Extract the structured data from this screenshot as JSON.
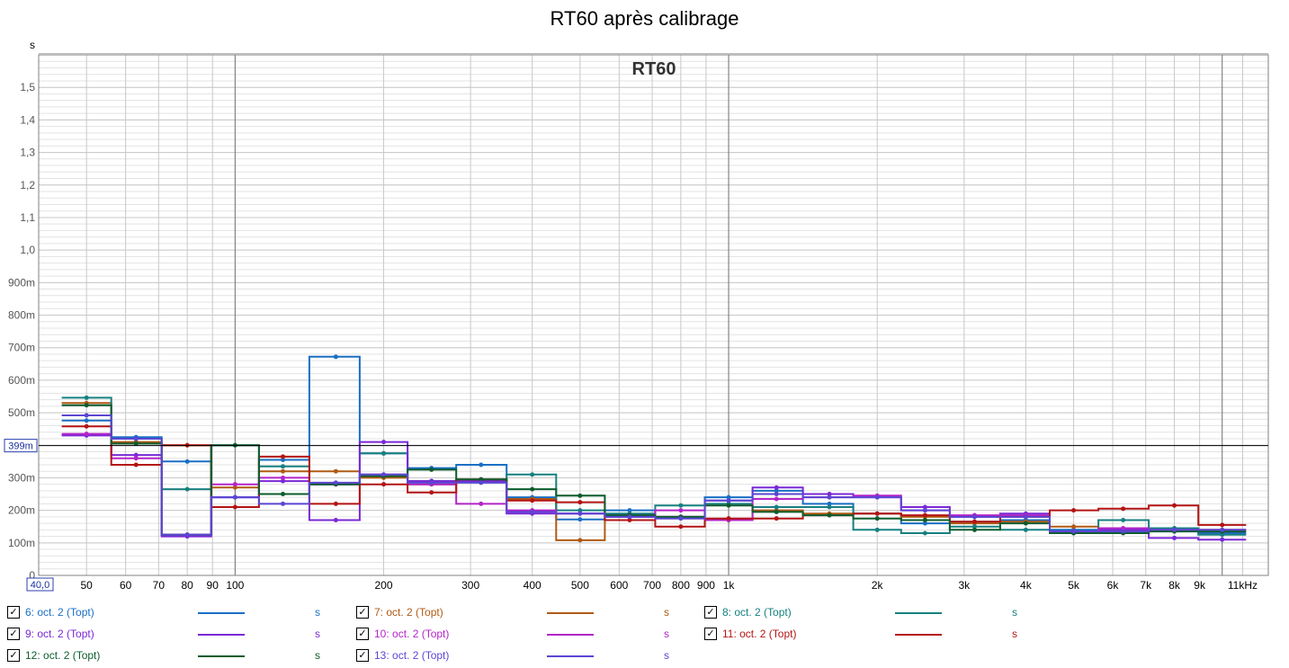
{
  "title": "RT60 après calibrage",
  "overlay_title": "RT60",
  "y_unit_label": "s",
  "cursor_x_label": "40,0",
  "cursor_y_label": "399m",
  "x_tick_labels": [
    {
      "f": 50,
      "t": "50"
    },
    {
      "f": 60,
      "t": "60"
    },
    {
      "f": 70,
      "t": "70"
    },
    {
      "f": 80,
      "t": "80"
    },
    {
      "f": 90,
      "t": "90"
    },
    {
      "f": 100,
      "t": "100"
    },
    {
      "f": 200,
      "t": "200"
    },
    {
      "f": 300,
      "t": "300"
    },
    {
      "f": 400,
      "t": "400"
    },
    {
      "f": 500,
      "t": "500"
    },
    {
      "f": 600,
      "t": "600"
    },
    {
      "f": 700,
      "t": "700"
    },
    {
      "f": 800,
      "t": "800"
    },
    {
      "f": 900,
      "t": "900"
    },
    {
      "f": 1000,
      "t": "1k"
    },
    {
      "f": 2000,
      "t": "2k"
    },
    {
      "f": 3000,
      "t": "3k"
    },
    {
      "f": 4000,
      "t": "4k"
    },
    {
      "f": 5000,
      "t": "5k"
    },
    {
      "f": 6000,
      "t": "6k"
    },
    {
      "f": 7000,
      "t": "7k"
    },
    {
      "f": 8000,
      "t": "8k"
    },
    {
      "f": 9000,
      "t": "9k"
    },
    {
      "f": 11000,
      "t": "11kHz"
    }
  ],
  "y_tick_labels": [
    {
      "v": 0,
      "t": "0"
    },
    {
      "v": 0.1,
      "t": "100m"
    },
    {
      "v": 0.2,
      "t": "200m"
    },
    {
      "v": 0.3,
      "t": "300m"
    },
    {
      "v": 0.4,
      "t": "400m"
    },
    {
      "v": 0.5,
      "t": "500m"
    },
    {
      "v": 0.6,
      "t": "600m"
    },
    {
      "v": 0.7,
      "t": "700m"
    },
    {
      "v": 0.8,
      "t": "800m"
    },
    {
      "v": 0.9,
      "t": "900m"
    },
    {
      "v": 1.0,
      "t": "1,0"
    },
    {
      "v": 1.1,
      "t": "1,1"
    },
    {
      "v": 1.2,
      "t": "1,2"
    },
    {
      "v": 1.3,
      "t": "1,3"
    },
    {
      "v": 1.4,
      "t": "1,4"
    },
    {
      "v": 1.5,
      "t": "1,5"
    }
  ],
  "chart_data": {
    "type": "line",
    "title": "RT60 après calibrage",
    "xlabel": "",
    "ylabel": "s",
    "x_scale": "log",
    "xlim": [
      40,
      12400
    ],
    "ylim": [
      0,
      1.6
    ],
    "grid": true,
    "legend_position": "bottom",
    "x": [
      50,
      63,
      80,
      100,
      125,
      160,
      200,
      250,
      315,
      400,
      500,
      630,
      800,
      1000,
      1250,
      1600,
      2000,
      2500,
      3150,
      4000,
      5000,
      6300,
      8000,
      10000
    ],
    "series": [
      {
        "name": "6: oct. 2 (Topt)",
        "color": "#1a6fc4",
        "values": [
          0.476,
          0.425,
          0.35,
          0.24,
          0.355,
          0.672,
          0.375,
          0.33,
          0.34,
          0.24,
          0.172,
          0.2,
          0.18,
          0.24,
          0.26,
          0.22,
          0.19,
          0.16,
          0.165,
          0.17,
          0.14,
          0.14,
          0.14,
          0.13
        ]
      },
      {
        "name": "7: oct. 2 (Topt)",
        "color": "#b05a14",
        "values": [
          0.53,
          0.41,
          0.4,
          0.27,
          0.32,
          0.32,
          0.3,
          0.28,
          0.29,
          0.235,
          0.108,
          0.18,
          0.18,
          0.17,
          0.2,
          0.19,
          0.19,
          0.18,
          0.16,
          0.165,
          0.15,
          0.135,
          0.14,
          0.14
        ]
      },
      {
        "name": "8: oct. 2 (Topt)",
        "color": "#178080",
        "values": [
          0.546,
          0.42,
          0.265,
          0.4,
          0.335,
          0.28,
          0.375,
          0.29,
          0.29,
          0.31,
          0.2,
          0.19,
          0.215,
          0.22,
          0.21,
          0.21,
          0.14,
          0.13,
          0.15,
          0.14,
          0.13,
          0.17,
          0.145,
          0.125
        ]
      },
      {
        "name": "9: oct. 2 (Topt)",
        "color": "#7a28d6",
        "values": [
          0.43,
          0.37,
          0.12,
          0.24,
          0.29,
          0.17,
          0.41,
          0.29,
          0.29,
          0.19,
          0.19,
          0.18,
          0.18,
          0.23,
          0.27,
          0.25,
          0.24,
          0.21,
          0.18,
          0.19,
          0.135,
          0.14,
          0.115,
          0.11
        ]
      },
      {
        "name": "10: oct. 2 (Topt)",
        "color": "#b424c8",
        "values": [
          0.435,
          0.36,
          0.125,
          0.28,
          0.3,
          0.28,
          0.31,
          0.28,
          0.22,
          0.2,
          0.19,
          0.185,
          0.2,
          0.17,
          0.235,
          0.24,
          0.245,
          0.2,
          0.185,
          0.185,
          0.135,
          0.145,
          0.14,
          0.135
        ]
      },
      {
        "name": "11: oct. 2 (Topt)",
        "color": "#b41414",
        "values": [
          0.458,
          0.34,
          0.4,
          0.21,
          0.365,
          0.22,
          0.28,
          0.255,
          0.295,
          0.23,
          0.225,
          0.17,
          0.15,
          0.175,
          0.175,
          0.185,
          0.19,
          0.185,
          0.165,
          0.18,
          0.2,
          0.205,
          0.215,
          0.155
        ]
      },
      {
        "name": "12: oct. 2 (Topt)",
        "color": "#0d5c2d",
        "values": [
          0.523,
          0.405,
          0.125,
          0.4,
          0.25,
          0.28,
          0.305,
          0.325,
          0.295,
          0.265,
          0.245,
          0.185,
          0.18,
          0.215,
          0.195,
          0.185,
          0.175,
          0.17,
          0.14,
          0.16,
          0.13,
          0.13,
          0.135,
          0.135
        ]
      },
      {
        "name": "13: oct. 2 (Topt)",
        "color": "#5a46d2",
        "values": [
          0.492,
          0.42,
          0.125,
          0.24,
          0.22,
          0.285,
          0.31,
          0.285,
          0.285,
          0.195,
          0.19,
          0.18,
          0.175,
          0.23,
          0.25,
          0.24,
          0.24,
          0.2,
          0.18,
          0.18,
          0.135,
          0.135,
          0.14,
          0.14
        ]
      }
    ]
  },
  "legend": [
    {
      "label": "6: oct. 2 (Topt)",
      "color": "#1a6fc4",
      "unit": "s",
      "checked": "✓"
    },
    {
      "label": "7: oct. 2 (Topt)",
      "color": "#b05a14",
      "unit": "s",
      "checked": "✓"
    },
    {
      "label": "8: oct. 2 (Topt)",
      "color": "#178080",
      "unit": "s",
      "checked": "✓"
    },
    {
      "label": "9: oct. 2 (Topt)",
      "color": "#7a28d6",
      "unit": "s",
      "checked": "✓"
    },
    {
      "label": "10: oct. 2 (Topt)",
      "color": "#b424c8",
      "unit": "s",
      "checked": "✓"
    },
    {
      "label": "11: oct. 2 (Topt)",
      "color": "#b41414",
      "unit": "s",
      "checked": "✓"
    },
    {
      "label": "12: oct. 2 (Topt)",
      "color": "#0d5c2d",
      "unit": "s",
      "checked": "✓"
    },
    {
      "label": "13: oct. 2 (Topt)",
      "color": "#5a46d2",
      "unit": "s",
      "checked": "✓"
    }
  ]
}
